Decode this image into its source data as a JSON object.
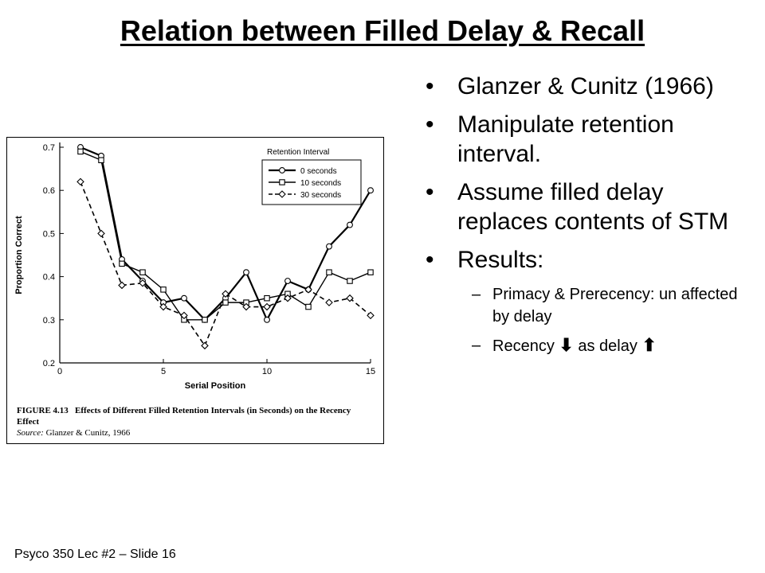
{
  "slide": {
    "title": "Relation between Filled Delay & Recall",
    "footer": "Psyco 350 Lec #2 – Slide 16"
  },
  "bullets": {
    "b1": "Glanzer & Cunitz (1966)",
    "b2": "Manipulate retention interval.",
    "b3": "Assume filled delay replaces contents of STM",
    "b4": "Results:",
    "sub1": "Primacy & Prerecency: un affected by delay",
    "sub2_prefix": "Recency",
    "sub2_mid": "as delay",
    "bullet_glyph": "•",
    "dash_glyph": "–",
    "down_arrow": "⬇",
    "up_arrow": "⬆"
  },
  "figure": {
    "caption_num": "FIGURE 4.13",
    "caption_text": "Effects of Different Filled Retention Intervals (in Seconds) on the Recency Effect",
    "source_label": "Source:",
    "source_text": "Glanzer & Cunitz, 1966"
  },
  "chart_data": {
    "type": "line",
    "title": "",
    "xlabel": "Serial Position",
    "ylabel": "Proportion Correct",
    "xlim": [
      0,
      15
    ],
    "ylim": [
      0.2,
      0.7
    ],
    "x_ticks": [
      0,
      5,
      10,
      15
    ],
    "y_ticks": [
      0.2,
      0.3,
      0.4,
      0.5,
      0.6,
      0.7
    ],
    "x_tick_labels": [
      "0",
      "5",
      "10",
      "15"
    ],
    "y_tick_labels": [
      "0.2",
      "0.3",
      "0.4",
      "0.5",
      "0.6",
      "0.7"
    ],
    "grid": false,
    "legend_title": "Retention Interval",
    "legend_position": "top-right",
    "x": [
      1,
      2,
      3,
      4,
      5,
      6,
      7,
      8,
      9,
      10,
      11,
      12,
      13,
      14,
      15
    ],
    "series": [
      {
        "name": "0 seconds",
        "marker": "circle",
        "dash": "solid",
        "width": 2.2,
        "values": [
          0.7,
          0.68,
          0.44,
          0.39,
          0.34,
          0.35,
          0.3,
          0.35,
          0.41,
          0.3,
          0.39,
          0.37,
          0.47,
          0.52,
          0.6
        ]
      },
      {
        "name": "10 seconds",
        "marker": "square",
        "dash": "solid",
        "width": 1.4,
        "values": [
          0.69,
          0.67,
          0.43,
          0.41,
          0.37,
          0.3,
          0.3,
          0.34,
          0.34,
          0.35,
          0.36,
          0.33,
          0.41,
          0.39,
          0.41
        ]
      },
      {
        "name": "30 seconds",
        "marker": "diamond",
        "dash": "dashed",
        "width": 1.6,
        "values": [
          0.62,
          0.5,
          0.38,
          0.385,
          0.33,
          0.31,
          0.24,
          0.36,
          0.33,
          0.33,
          0.35,
          0.37,
          0.34,
          0.35,
          0.31
        ]
      }
    ]
  }
}
